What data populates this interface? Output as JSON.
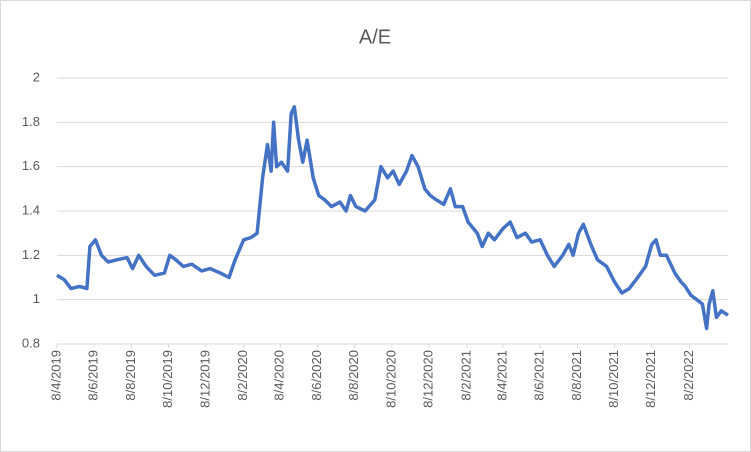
{
  "chart_data": {
    "type": "line",
    "title": "A/E",
    "x": [
      "2019-04-08",
      "2019-04-20",
      "2019-05-01",
      "2019-05-15",
      "2019-05-27",
      "2019-06-01",
      "2019-06-10",
      "2019-06-20",
      "2019-07-01",
      "2019-07-15",
      "2019-08-01",
      "2019-08-10",
      "2019-08-20",
      "2019-09-01",
      "2019-09-15",
      "2019-10-01",
      "2019-10-10",
      "2019-10-20",
      "2019-11-01",
      "2019-11-15",
      "2019-12-01",
      "2019-12-15",
      "2020-01-01",
      "2020-01-15",
      "2020-01-25",
      "2020-02-08",
      "2020-02-20",
      "2020-03-01",
      "2020-03-10",
      "2020-03-18",
      "2020-03-24",
      "2020-03-28",
      "2020-04-02",
      "2020-04-10",
      "2020-04-20",
      "2020-04-26",
      "2020-05-01",
      "2020-05-08",
      "2020-05-15",
      "2020-05-22",
      "2020-06-01",
      "2020-06-10",
      "2020-06-20",
      "2020-07-01",
      "2020-07-15",
      "2020-07-25",
      "2020-08-01",
      "2020-08-10",
      "2020-08-25",
      "2020-09-10",
      "2020-09-20",
      "2020-10-01",
      "2020-10-10",
      "2020-10-20",
      "2020-11-01",
      "2020-11-10",
      "2020-11-20",
      "2020-12-01",
      "2020-12-10",
      "2020-12-20",
      "2021-01-01",
      "2021-01-12",
      "2021-01-20",
      "2021-02-01",
      "2021-02-10",
      "2021-02-25",
      "2021-03-05",
      "2021-03-15",
      "2021-03-25",
      "2021-04-08",
      "2021-04-20",
      "2021-05-01",
      "2021-05-15",
      "2021-05-25",
      "2021-06-08",
      "2021-06-20",
      "2021-07-01",
      "2021-07-15",
      "2021-07-25",
      "2021-08-01",
      "2021-08-10",
      "2021-08-18",
      "2021-08-30",
      "2021-09-10",
      "2021-09-25",
      "2021-10-08",
      "2021-10-20",
      "2021-11-01",
      "2021-11-15",
      "2021-11-28",
      "2021-12-08",
      "2021-12-15",
      "2021-12-22",
      "2022-01-01",
      "2022-01-15",
      "2022-01-25",
      "2022-02-01",
      "2022-02-10",
      "2022-02-20",
      "2022-03-01",
      "2022-03-08",
      "2022-03-12",
      "2022-03-18",
      "2022-03-24",
      "2022-04-01",
      "2022-04-12"
    ],
    "values": [
      1.11,
      1.09,
      1.05,
      1.06,
      1.05,
      1.24,
      1.27,
      1.2,
      1.17,
      1.18,
      1.19,
      1.14,
      1.2,
      1.15,
      1.11,
      1.12,
      1.2,
      1.18,
      1.15,
      1.16,
      1.13,
      1.14,
      1.12,
      1.1,
      1.18,
      1.27,
      1.28,
      1.3,
      1.55,
      1.7,
      1.58,
      1.8,
      1.6,
      1.62,
      1.58,
      1.84,
      1.87,
      1.72,
      1.62,
      1.72,
      1.55,
      1.47,
      1.45,
      1.42,
      1.44,
      1.4,
      1.47,
      1.42,
      1.4,
      1.45,
      1.6,
      1.55,
      1.58,
      1.52,
      1.58,
      1.65,
      1.6,
      1.5,
      1.47,
      1.45,
      1.43,
      1.5,
      1.42,
      1.42,
      1.35,
      1.3,
      1.24,
      1.3,
      1.27,
      1.32,
      1.35,
      1.28,
      1.3,
      1.26,
      1.27,
      1.2,
      1.15,
      1.2,
      1.25,
      1.2,
      1.3,
      1.34,
      1.25,
      1.18,
      1.15,
      1.08,
      1.03,
      1.05,
      1.1,
      1.15,
      1.25,
      1.27,
      1.2,
      1.2,
      1.12,
      1.08,
      1.06,
      1.02,
      1.0,
      0.98,
      0.87,
      0.98,
      1.04,
      0.92,
      0.95,
      0.93
    ],
    "color": "#4472c4",
    "xlim": [
      "2019-04-08",
      "2022-04-12"
    ],
    "xticks": [
      {
        "value": "2019-04-08",
        "label": "8/4/2019"
      },
      {
        "value": "2019-06-08",
        "label": "8/6/2019"
      },
      {
        "value": "2019-08-08",
        "label": "8/8/2019"
      },
      {
        "value": "2019-10-08",
        "label": "8/10/2019"
      },
      {
        "value": "2019-12-08",
        "label": "8/12/2019"
      },
      {
        "value": "2020-02-08",
        "label": "8/2/2020"
      },
      {
        "value": "2020-04-08",
        "label": "8/4/2020"
      },
      {
        "value": "2020-06-08",
        "label": "8/6/2020"
      },
      {
        "value": "2020-08-08",
        "label": "8/8/2020"
      },
      {
        "value": "2020-10-08",
        "label": "8/10/2020"
      },
      {
        "value": "2020-12-08",
        "label": "8/12/2020"
      },
      {
        "value": "2021-02-08",
        "label": "8/2/2021"
      },
      {
        "value": "2021-04-08",
        "label": "8/4/2021"
      },
      {
        "value": "2021-06-08",
        "label": "8/6/2021"
      },
      {
        "value": "2021-08-08",
        "label": "8/8/2021"
      },
      {
        "value": "2021-10-08",
        "label": "8/10/2021"
      },
      {
        "value": "2021-12-08",
        "label": "8/12/2021"
      },
      {
        "value": "2022-02-08",
        "label": "8/2/2022"
      }
    ],
    "ylim": [
      0.8,
      2
    ],
    "yticks": [
      0.8,
      1,
      1.2,
      1.4,
      1.6,
      1.8,
      2
    ],
    "grid": true
  }
}
